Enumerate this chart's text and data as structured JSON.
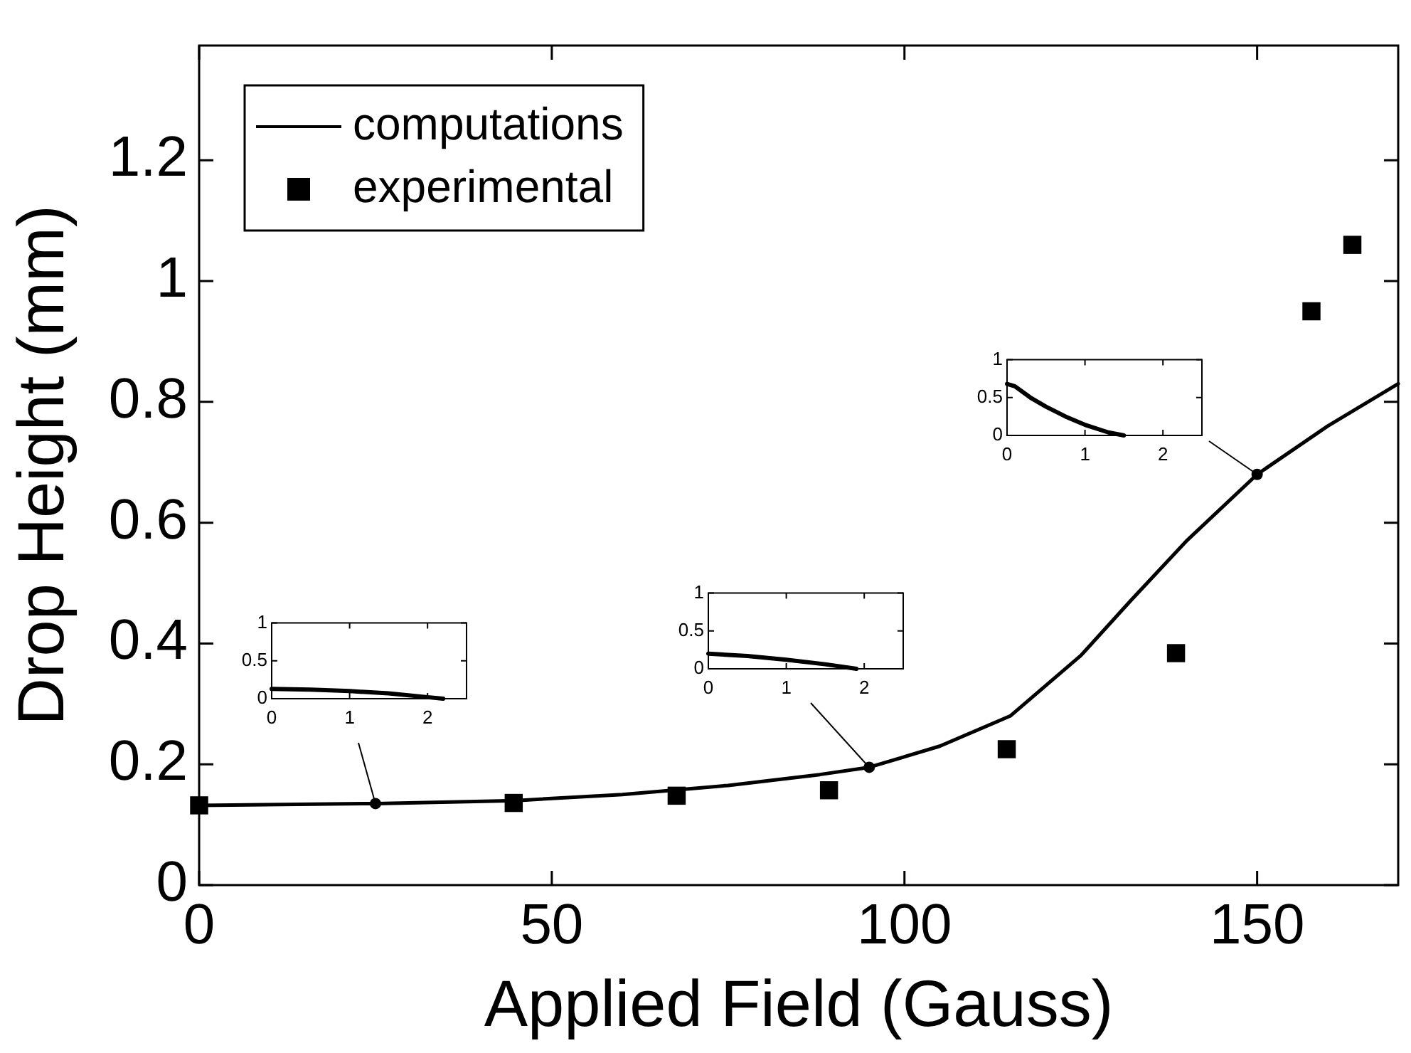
{
  "chart_data": [
    {
      "type": "line",
      "xlabel": "Applied Field (Gauss)",
      "ylabel": "Drop Height (mm)",
      "xlim": [
        0,
        170
      ],
      "xticks": [
        0,
        50,
        100,
        150
      ],
      "ylim": [
        0,
        1.39
      ],
      "yticks": [
        0,
        0.2,
        0.4,
        0.6,
        0.8,
        1,
        1.2
      ],
      "grid": false,
      "legend": "top left",
      "series": [
        {
          "name": "computations",
          "color": "#000000",
          "marker": "none",
          "line_style": "solid",
          "x": [
            0,
            25,
            45,
            60,
            75,
            88,
            95,
            105,
            115,
            125,
            132,
            140,
            150,
            160,
            170
          ],
          "values": [
            0.132,
            0.135,
            0.14,
            0.15,
            0.165,
            0.183,
            0.195,
            0.23,
            0.28,
            0.38,
            0.47,
            0.57,
            0.68,
            0.76,
            0.83
          ]
        },
        {
          "name": "experimental",
          "type": "scatter",
          "color": "#000000",
          "marker": "square",
          "x": [
            0,
            44.6,
            67.7,
            89.3,
            114.5,
            138.5,
            157.7,
            163.5
          ],
          "values": [
            0.132,
            0.136,
            0.148,
            0.157,
            0.225,
            0.384,
            0.95,
            1.06
          ]
        },
        {
          "type": "scatter",
          "color": "#000000",
          "marker": "circle",
          "x": [
            25,
            95,
            150
          ],
          "values": [
            0.135,
            0.195,
            0.68
          ]
        }
      ]
    },
    {
      "type": "line",
      "xlim": [
        0,
        2.5
      ],
      "xticks": [
        0,
        1,
        2
      ],
      "ylim": [
        0,
        1
      ],
      "yticks": [
        0,
        0.5,
        1
      ],
      "grid": false,
      "series": [
        {
          "color": "#000000",
          "x": [
            0,
            0.5,
            1,
            1.5,
            2,
            2.2
          ],
          "values": [
            0.13,
            0.12,
            0.1,
            0.07,
            0.02,
            0
          ]
        }
      ]
    },
    {
      "type": "line",
      "xlim": [
        0,
        2.5
      ],
      "xticks": [
        0,
        1,
        2
      ],
      "ylim": [
        0,
        1
      ],
      "yticks": [
        0,
        0.5,
        1
      ],
      "grid": false,
      "series": [
        {
          "color": "#000000",
          "x": [
            0,
            0.5,
            1,
            1.5,
            1.9
          ],
          "values": [
            0.2,
            0.17,
            0.12,
            0.06,
            0
          ]
        }
      ]
    },
    {
      "type": "line",
      "xlim": [
        0,
        2.5
      ],
      "xticks": [
        0,
        1,
        2
      ],
      "ylim": [
        0,
        1
      ],
      "yticks": [
        0,
        0.5,
        1
      ],
      "grid": false,
      "series": [
        {
          "color": "#000000",
          "x": [
            0,
            0.1,
            0.3,
            0.5,
            0.75,
            1,
            1.3,
            1.5
          ],
          "values": [
            0.68,
            0.65,
            0.5,
            0.38,
            0.25,
            0.14,
            0.04,
            0
          ]
        }
      ]
    }
  ]
}
